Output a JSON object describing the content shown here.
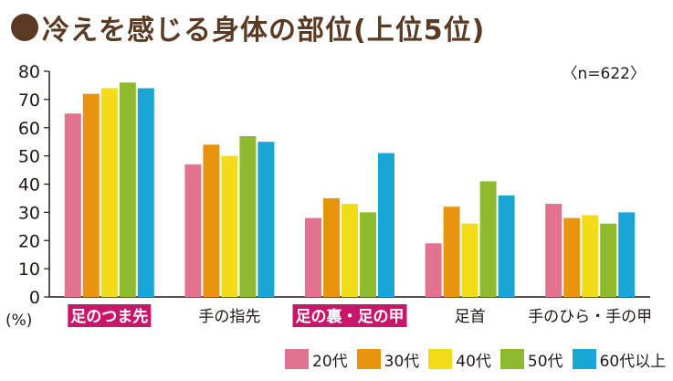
{
  "title": "冷えを感じる身体の部位(上位5位)",
  "sample_size": "〈n=622〉",
  "colors": {
    "title": "#5a3a22",
    "highlight_bg": "#c9156a",
    "highlight_text": "#ffffff",
    "axis": "#231815"
  },
  "chart_data": {
    "type": "bar",
    "title": "冷えを感じる身体の部位(上位5位)",
    "ylabel": "(%)",
    "ylim": [
      0,
      80
    ],
    "yticks": [
      0,
      10,
      20,
      30,
      40,
      50,
      60,
      70,
      80
    ],
    "grid": false,
    "legend_position": "bottom-right",
    "categories": [
      "足のつま先",
      "手の指先",
      "足の裏・足の甲",
      "足首",
      "手のひら・手の甲"
    ],
    "highlighted_categories": [
      "足のつま先",
      "足の裏・足の甲"
    ],
    "series": [
      {
        "name": "20代",
        "color": "#e0738f",
        "values": [
          65,
          47,
          28,
          19,
          33
        ]
      },
      {
        "name": "30代",
        "color": "#e8940f",
        "values": [
          72,
          54,
          35,
          32,
          28
        ]
      },
      {
        "name": "40代",
        "color": "#f3dc17",
        "values": [
          74,
          50,
          33,
          26,
          29
        ]
      },
      {
        "name": "50代",
        "color": "#8dbb2d",
        "values": [
          76,
          57,
          30,
          41,
          26
        ]
      },
      {
        "name": "60代以上",
        "color": "#1aa6d4",
        "values": [
          74,
          55,
          51,
          36,
          30
        ]
      }
    ]
  }
}
